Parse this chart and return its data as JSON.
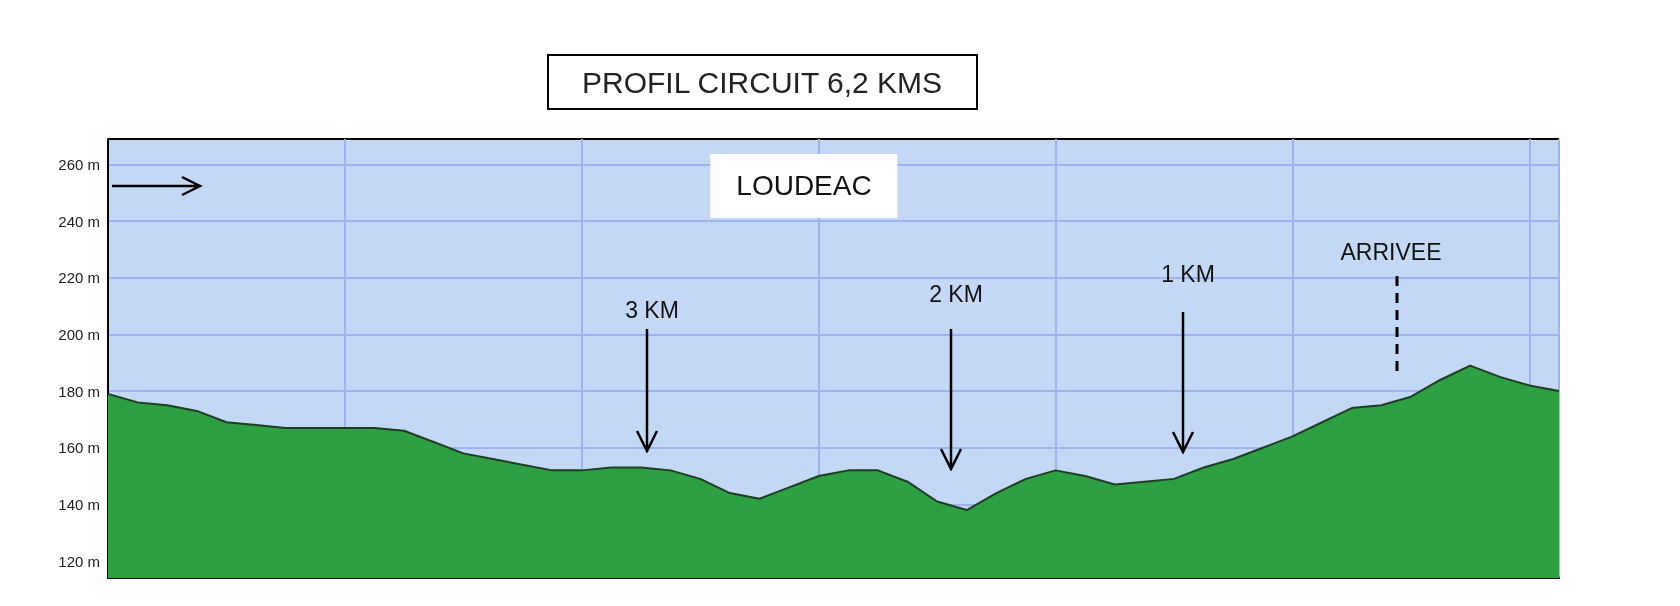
{
  "chart_data": {
    "type": "area",
    "title": "PROFIL CIRCUIT 6,2 KMS",
    "categories": [
      null,
      null,
      null,
      null,
      null,
      null,
      null,
      null,
      null,
      null,
      null,
      null,
      null,
      null,
      null,
      null,
      null,
      null,
      null,
      null,
      null,
      null,
      null,
      null,
      null,
      null,
      null,
      null,
      null,
      null,
      null,
      null,
      null,
      null,
      null,
      null,
      null,
      null,
      null,
      null,
      null,
      null,
      null,
      null,
      null,
      null,
      null,
      null,
      null,
      null
    ],
    "series": [
      {
        "color": "#2ca043",
        "values": [
          179,
          176,
          175,
          173,
          169,
          168,
          167,
          167,
          167,
          167,
          166,
          162,
          158,
          156,
          154,
          152,
          152,
          153,
          153,
          152,
          149,
          144,
          142,
          146,
          150,
          152,
          152,
          148,
          141,
          138,
          144,
          149,
          152,
          150,
          147,
          148,
          149,
          153,
          156,
          160,
          164,
          169,
          174,
          175,
          178,
          184,
          189,
          185,
          182,
          180
        ]
      }
    ],
    "ylim": [
      114,
      269
    ],
    "yticks": [
      {
        "value": 120,
        "label": "120 m"
      },
      {
        "value": 140,
        "label": "140 m"
      },
      {
        "value": 160,
        "label": "160 m"
      },
      {
        "value": 180,
        "label": "180 m"
      },
      {
        "value": 200,
        "label": "200 m"
      },
      {
        "value": 220,
        "label": "220 m"
      },
      {
        "value": 240,
        "label": "240 m"
      },
      {
        "value": 260,
        "label": "260 m"
      }
    ],
    "grid": true,
    "tick_labels": "y",
    "annotations": [
      "LOUDEAC",
      "3 KM",
      "2 KM",
      "1 KM",
      "ARRIVEE"
    ]
  }
}
